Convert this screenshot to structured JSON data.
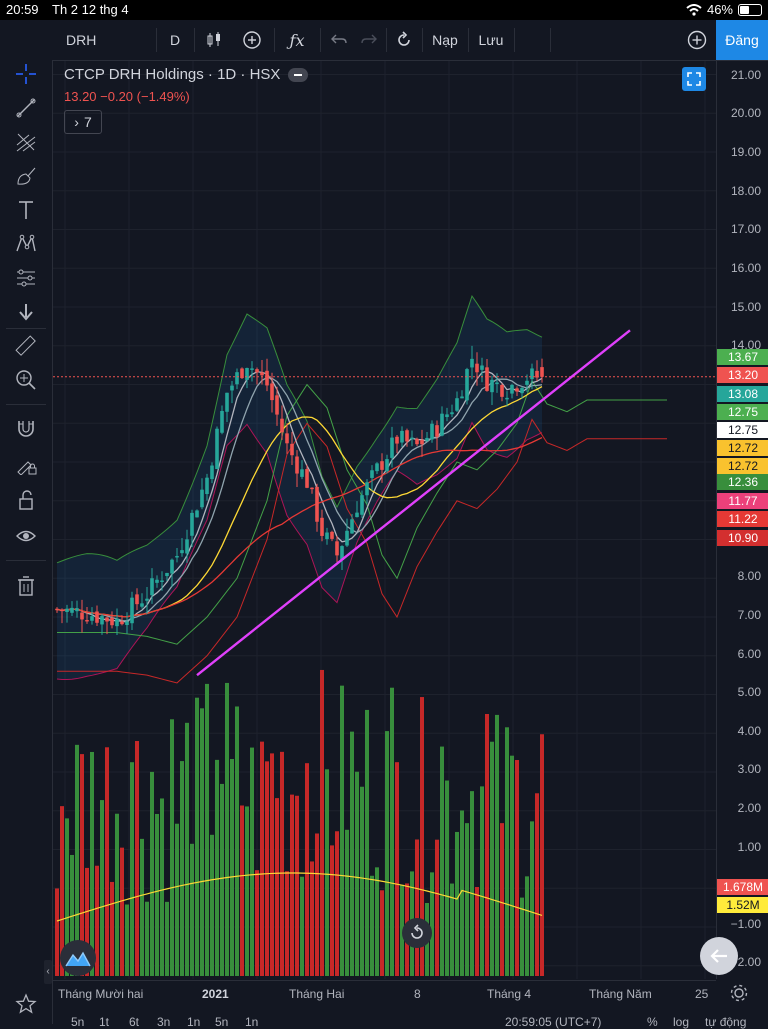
{
  "status_bar": {
    "time": "20:59",
    "date": "Th 2 12 thg 4",
    "battery": "46%"
  },
  "toolbar": {
    "symbol": "DRH",
    "interval": "D",
    "undo_label": "",
    "load_label": "Nạp",
    "save_label": "Lưu",
    "signin_label": "Đăng"
  },
  "legend": {
    "title": "CTCP DRH Holdings · 1D · HSX",
    "quote": "13.20  −0.20 (−1.49%)",
    "indicators_count": "7"
  },
  "price_axis": {
    "ticks": [
      "21.00",
      "20.00",
      "19.00",
      "18.00",
      "17.00",
      "16.00",
      "15.00",
      "14.00",
      "8.00",
      "7.00",
      "6.00",
      "5.00",
      "4.00",
      "3.00",
      "2.00",
      "1.00",
      "−1.00",
      "−2.00"
    ],
    "badges": [
      {
        "label": "13.67",
        "bg": "#4caf50",
        "fg": "#ffffff"
      },
      {
        "label": "13.20",
        "bg": "#ef5350",
        "fg": "#ffffff"
      },
      {
        "label": "13.08",
        "bg": "#26a69a",
        "fg": "#ffffff"
      },
      {
        "label": "12.75",
        "bg": "#4caf50",
        "fg": "#ffffff"
      },
      {
        "label": "12.75",
        "bg": "#ffffff",
        "fg": "#131722"
      },
      {
        "label": "12.72",
        "bg": "#f9c22e",
        "fg": "#131722"
      },
      {
        "label": "12.72",
        "bg": "#f9c22e",
        "fg": "#131722"
      },
      {
        "label": "12.36",
        "bg": "#388e3c",
        "fg": "#ffffff"
      },
      {
        "label": "11.77",
        "bg": "#ec407a",
        "fg": "#ffffff"
      },
      {
        "label": "11.22",
        "bg": "#e53935",
        "fg": "#ffffff"
      },
      {
        "label": "10.90",
        "bg": "#d32f2f",
        "fg": "#ffffff"
      }
    ],
    "volume_badges": [
      {
        "label": "1.678M",
        "bg": "#ef5350",
        "fg": "#ffffff"
      },
      {
        "label": "1.52M",
        "bg": "#ffeb3b",
        "fg": "#131722"
      }
    ]
  },
  "time_axis": [
    "Tháng Mười hai",
    "2021",
    "Tháng Hai",
    "8",
    "Tháng 4",
    "Tháng Năm",
    "25"
  ],
  "bottom_bar": {
    "ranges": [
      "5n",
      "1t",
      "6t",
      "3n",
      "1n",
      "5n",
      "1n"
    ],
    "clock": "20:59:05 (UTC+7)",
    "percent": "%",
    "log": "log",
    "auto": "tự động"
  },
  "colors": {
    "up": "#26a69a",
    "down": "#ef5350",
    "volume_up": "#388e3c",
    "volume_down": "#c62828",
    "trendline": "#e040fb",
    "background": "#131722"
  },
  "icons": [
    "crosshair-icon",
    "trend-line-icon",
    "pitchfork-icon",
    "brush-icon",
    "text-icon",
    "pattern-icon",
    "prediction-icon",
    "arrow-down-icon",
    "ruler-icon",
    "zoom-icon",
    "magnet-icon",
    "lock-drawing-icon",
    "unlock-icon",
    "eye-icon",
    "trash-icon",
    "star-icon"
  ],
  "chart_data": {
    "type": "candlestick",
    "symbol": "DRH",
    "price_range": [
      -2,
      21
    ],
    "last_close": 13.2,
    "change": -0.2,
    "change_pct": -1.49,
    "trendline": {
      "from": 5.5,
      "to": 14.4
    }
  }
}
